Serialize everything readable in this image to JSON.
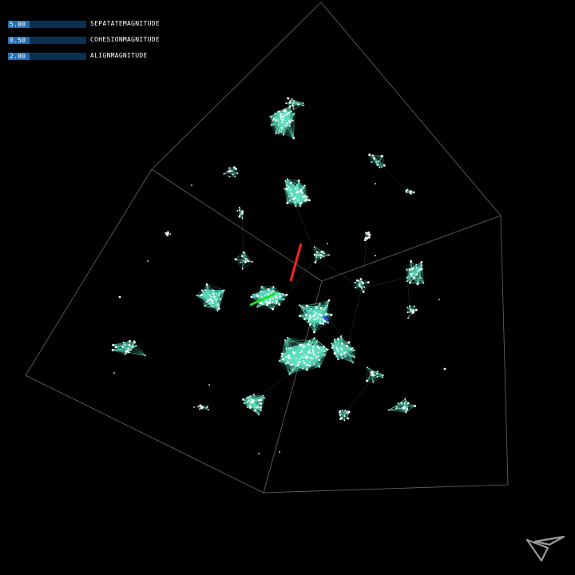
{
  "controls": [
    {
      "value": "5.00",
      "label": "SEPATATEMAGNITUDE",
      "fill": 0.28
    },
    {
      "value": "0.50",
      "label": "COHESIONMAGNITUDE",
      "fill": 0.28
    },
    {
      "value": "2.00",
      "label": "ALIGNMAGNITUDE",
      "fill": 0.28
    }
  ],
  "colors": {
    "background": "#000000",
    "slider_track": "#0a2f55",
    "slider_fill": "#1f6fb8",
    "boid_link": "#5ce0c0",
    "boid": "#ffffff",
    "cube_edge": "#8a8a8a",
    "axis_x": "#ff2222",
    "axis_y": "#22dd22",
    "axis_z": "#2244ff"
  },
  "icons": {
    "logo": "app-logo-icon"
  }
}
